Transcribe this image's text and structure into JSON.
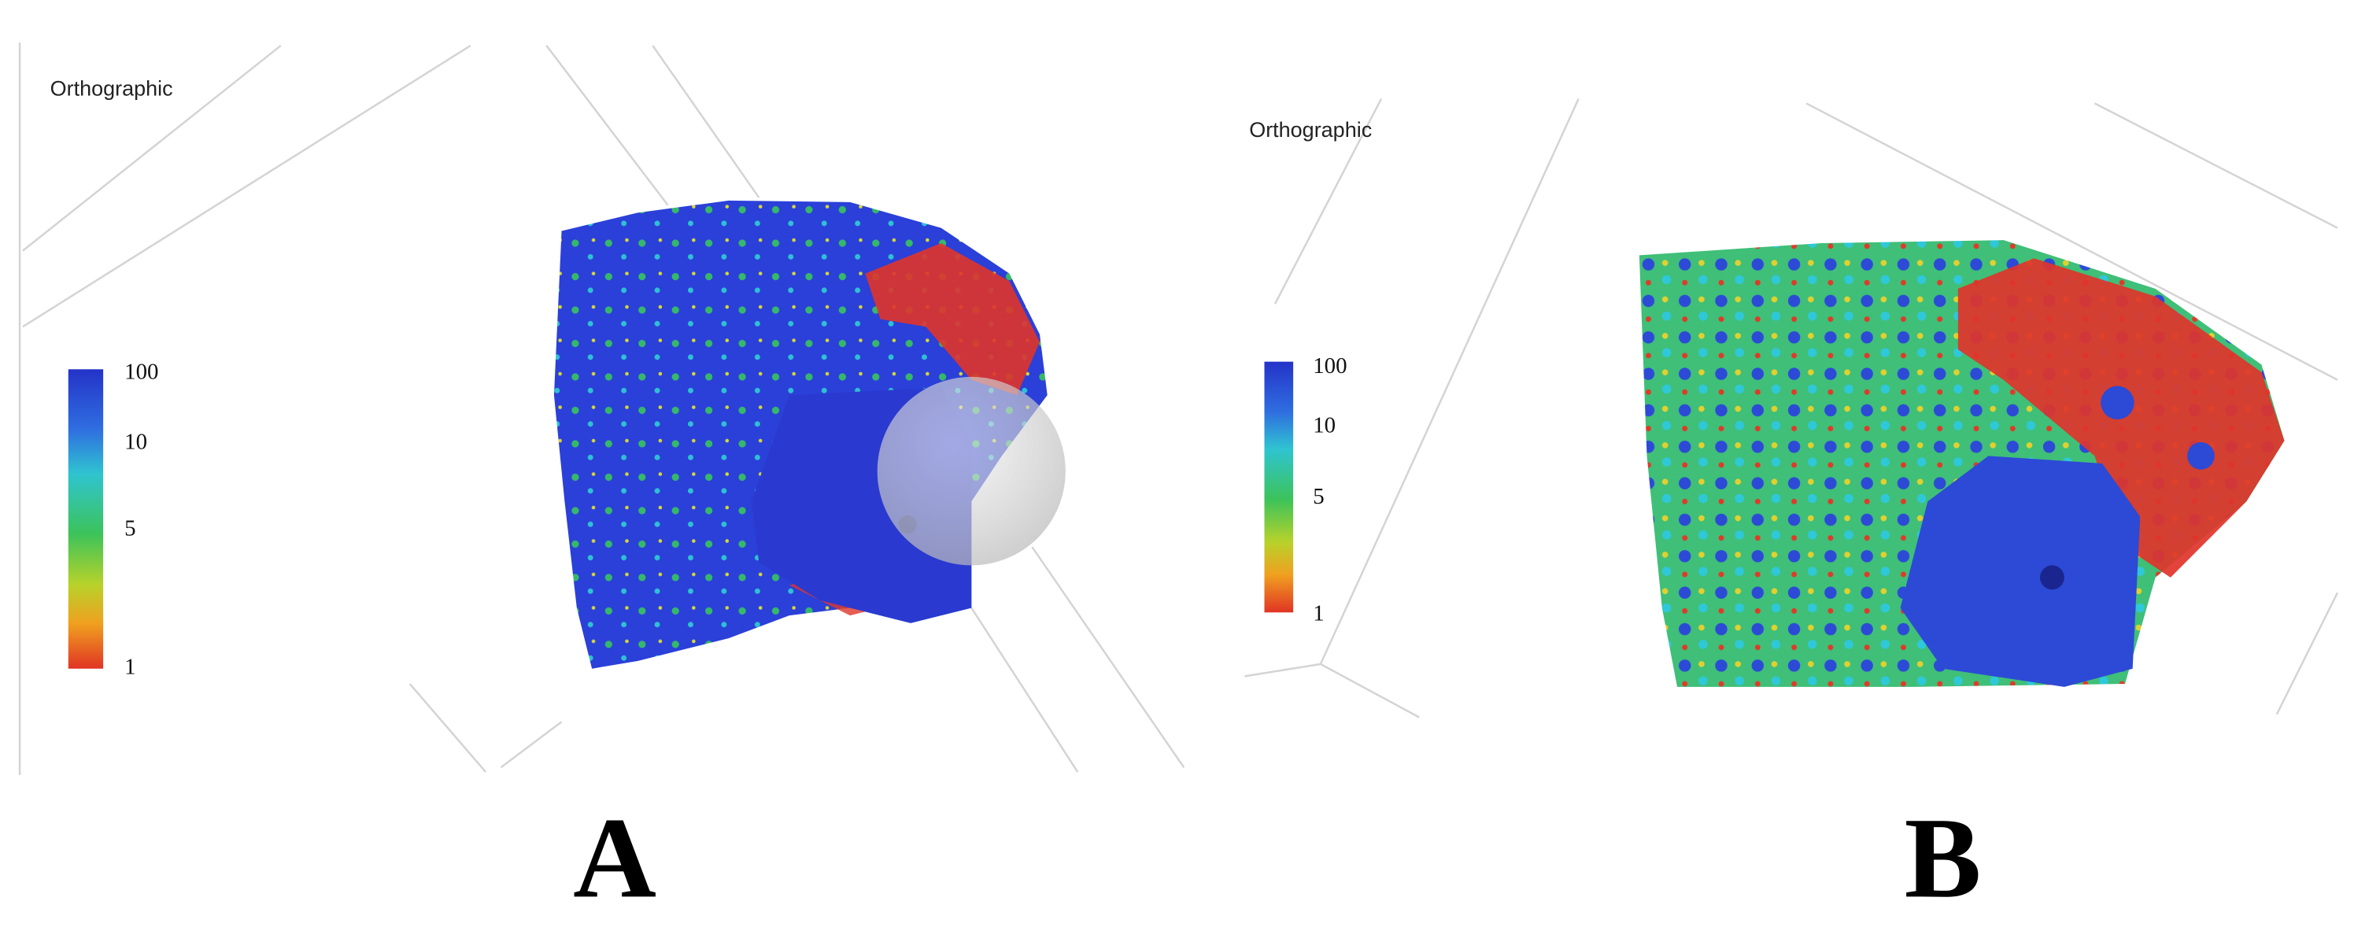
{
  "panels": [
    {
      "viewport_label": "Orthographic",
      "colorbar": {
        "ticks": [
          100,
          10,
          5,
          1
        ]
      },
      "label": "A"
    },
    {
      "viewport_label": "Orthographic",
      "colorbar": {
        "ticks": [
          100,
          10,
          5,
          1
        ]
      },
      "label": "B"
    }
  ]
}
